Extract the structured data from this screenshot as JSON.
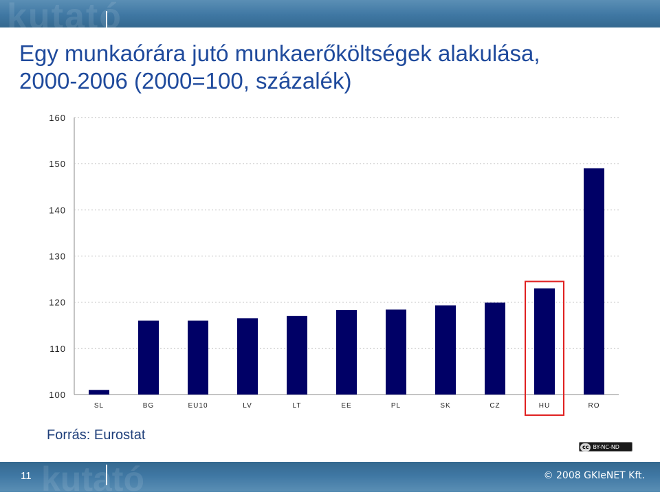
{
  "title": {
    "line1": "Egy munkaórára jutó munkaerőköltségek alakulása,",
    "line2": "2000-2006 (2000=100, százalék)"
  },
  "chart_data": {
    "type": "bar",
    "categories": [
      "SL",
      "BG",
      "EU10",
      "LV",
      "LT",
      "EE",
      "PL",
      "SK",
      "CZ",
      "HU",
      "RO"
    ],
    "values": [
      101,
      116,
      116,
      116.5,
      117,
      118.3,
      118.4,
      119.3,
      119.9,
      123,
      149
    ],
    "ylim": [
      100,
      160
    ],
    "yticks": [
      "100",
      "110",
      "120",
      "130",
      "140",
      "150",
      "160"
    ],
    "highlight": "HU",
    "grid": "dotted horizontal",
    "colors": {
      "bar": "#000066",
      "highlight_box": "#e02020",
      "grid": "#bbbbbb"
    }
  },
  "source": "Forrás: Eurostat",
  "license_badge": "BY-NC-ND",
  "license_cc": "cc",
  "footer": {
    "page_number": "11",
    "copyright": "© 2008 GKIeNET Kft."
  },
  "colors": {
    "title": "#1f4a9c",
    "band": "#3f77a3"
  }
}
